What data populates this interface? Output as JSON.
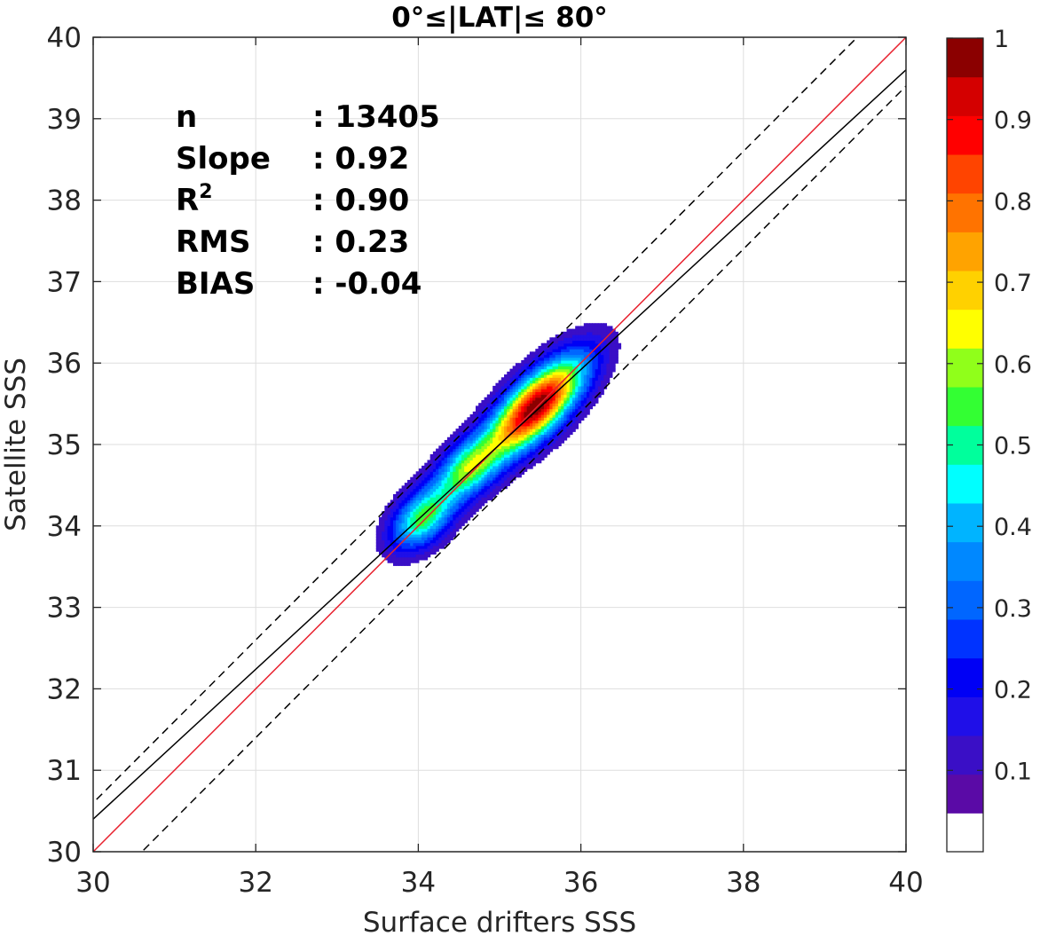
{
  "chart_data": {
    "type": "contour",
    "title": "0°≤|LAT|≤ 80°",
    "xlabel": "Surface drifters SSS",
    "ylabel": "Satellite SSS",
    "xlim": [
      30,
      40
    ],
    "ylim": [
      30,
      40
    ],
    "x_ticks": [
      "30",
      "32",
      "34",
      "36",
      "38",
      "40"
    ],
    "y_ticks": [
      "30",
      "31",
      "32",
      "33",
      "34",
      "35",
      "36",
      "37",
      "38",
      "39",
      "40"
    ],
    "grid": true,
    "stats": [
      {
        "label": "n",
        "value": ": 13405"
      },
      {
        "label": "Slope",
        "value": ": 0.92"
      },
      {
        "label": "R",
        "superscript": "2",
        "value": ": 0.90"
      },
      {
        "label": "RMS",
        "value": ": 0.23"
      },
      {
        "label": "BIAS",
        "value": ": -0.04"
      }
    ],
    "lines": [
      {
        "kind": "identity",
        "color": "#e8212e",
        "style": "solid",
        "slope": 1.0,
        "intercept": 0
      },
      {
        "kind": "regression",
        "color": "#000000",
        "style": "solid",
        "slope": 0.92,
        "intercept": 2.8
      },
      {
        "kind": "upper-bound",
        "color": "#000000",
        "style": "dashed",
        "slope": 1.0,
        "intercept": 0.6
      },
      {
        "kind": "lower-bound",
        "color": "#000000",
        "style": "dashed",
        "slope": 1.0,
        "intercept": -0.6
      }
    ],
    "density_peaks": [
      {
        "x": 35.45,
        "y": 35.47,
        "value": 1.0
      },
      {
        "x": 34.6,
        "y": 34.7,
        "value": 0.48
      },
      {
        "x": 34.05,
        "y": 34.1,
        "value": 0.52
      }
    ],
    "colorbar": {
      "ticks": [
        "0.1",
        "0.2",
        "0.3",
        "0.4",
        "0.5",
        "0.6",
        "0.7",
        "0.8",
        "0.9",
        "1"
      ],
      "levels": [
        0,
        0.05,
        0.1,
        0.15,
        0.2,
        0.25,
        0.3,
        0.35,
        0.4,
        0.45,
        0.5,
        0.55,
        0.6,
        0.65,
        0.7,
        0.75,
        0.8,
        0.85,
        0.9,
        0.95,
        1.0
      ],
      "colors": [
        "#ffffff",
        "#5a0aa6",
        "#3a0fc6",
        "#1f0fe8",
        "#0000f5",
        "#0033ff",
        "#0066ff",
        "#0088ff",
        "#00b4ff",
        "#00ffff",
        "#00ff9c",
        "#33ff33",
        "#90ff1a",
        "#ffff00",
        "#ffd100",
        "#ffa300",
        "#ff7300",
        "#ff4400",
        "#ff0000",
        "#d40000",
        "#8b0000"
      ]
    }
  }
}
